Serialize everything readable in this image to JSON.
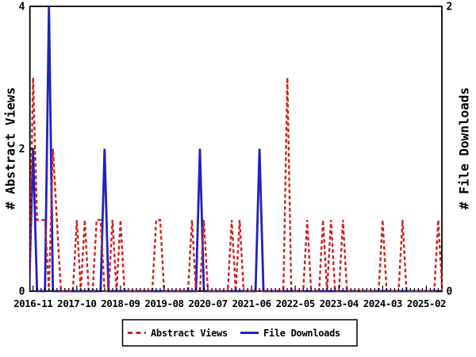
{
  "chart_data": {
    "type": "line",
    "title": "",
    "xlabel": "",
    "ylabel_left": "# Abstract Views",
    "ylabel_right": "# File Downloads",
    "x_range_months": [
      "2016-10",
      "2025-06"
    ],
    "x_tick_labels": [
      "2016-11",
      "2017-10",
      "2018-09",
      "2019-08",
      "2020-07",
      "2021-06",
      "2022-05",
      "2023-04",
      "2024-03",
      "2025-02"
    ],
    "x_minor_tick_unit": "month",
    "y_left_range": [
      0,
      4
    ],
    "y_left_ticks": [
      0,
      2,
      4
    ],
    "y_right_range": [
      0,
      2
    ],
    "y_right_ticks": [
      0,
      2
    ],
    "grid": false,
    "legend_position": "bottom-center-outside",
    "series": [
      {
        "name": "Abstract Views",
        "axis": "left",
        "style": "dashed",
        "color": "#cc2222",
        "default_value": 0,
        "monthly": {
          "2016-11": 3,
          "2016-12": 1,
          "2017-01": 1,
          "2017-02": 1,
          "2017-04": 2,
          "2017-05": 1,
          "2017-10": 1,
          "2017-12": 1,
          "2018-03": 1,
          "2018-04": 1,
          "2018-07": 1,
          "2018-09": 1,
          "2019-06": 1,
          "2019-07": 1,
          "2020-03": 1,
          "2020-06": 1,
          "2021-01": 1,
          "2021-03": 1,
          "2022-03": 3,
          "2022-08": 1,
          "2022-12": 1,
          "2023-02": 1,
          "2023-05": 1,
          "2024-03": 1,
          "2024-08": 1,
          "2025-05": 1
        }
      },
      {
        "name": "File Downloads",
        "axis": "right",
        "style": "solid",
        "color": "#2222bb",
        "default_value": 0,
        "monthly": {
          "2016-11": 1,
          "2017-03": 2,
          "2018-05": 1,
          "2020-05": 1,
          "2021-08": 1
        }
      }
    ],
    "legend": {
      "items": [
        "Abstract Views",
        "File Downloads"
      ]
    }
  },
  "colors": {
    "axis": "#000000",
    "background": "#ffffff",
    "abstract_views": "#cc2222",
    "file_downloads": "#2222bb"
  }
}
